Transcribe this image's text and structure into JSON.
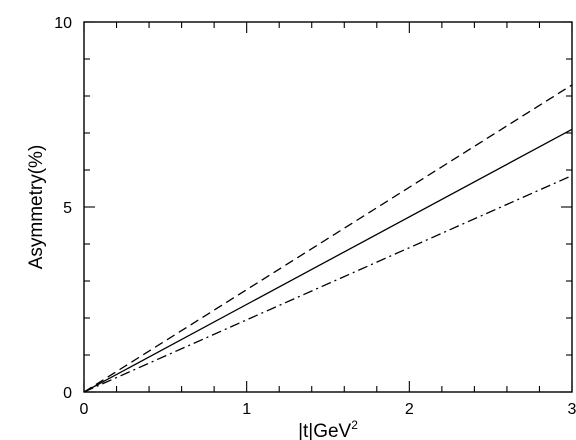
{
  "chart_data": {
    "type": "line",
    "title": "",
    "xlabel_main": "|t|GeV",
    "xlabel_sup": "2",
    "ylabel": "Asymmetry(%)",
    "xlim": [
      0,
      3
    ],
    "ylim": [
      0,
      10
    ],
    "x_ticks": [
      0,
      1,
      2,
      3
    ],
    "x_tick_labels": [
      "0",
      "1",
      "2",
      "3"
    ],
    "x_minor_step": 0.2,
    "y_ticks": [
      0,
      5,
      10
    ],
    "y_tick_labels": [
      "0",
      "5",
      "10"
    ],
    "y_minor_step": 1,
    "grid": false,
    "legend": "none",
    "series": [
      {
        "style": "solid",
        "x": [
          0,
          3
        ],
        "y": [
          0,
          7.1
        ]
      },
      {
        "style": "dashed",
        "x": [
          0,
          3
        ],
        "y": [
          0,
          8.3
        ]
      },
      {
        "style": "dash-dot",
        "x": [
          0,
          3
        ],
        "y": [
          0,
          5.85
        ]
      }
    ]
  }
}
